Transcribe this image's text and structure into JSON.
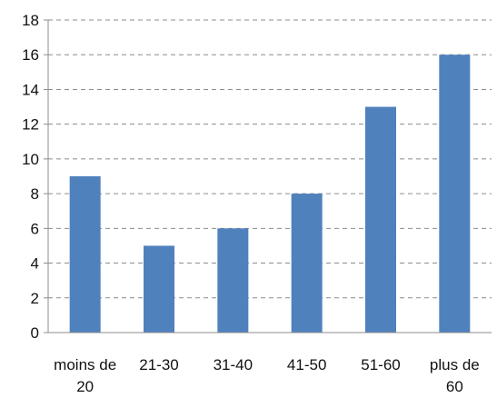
{
  "chart_data": {
    "type": "bar",
    "categories": [
      "moins de 20",
      "21-30",
      "31-40",
      "41-50",
      "51-60",
      "plus de 60"
    ],
    "category_lines": [
      [
        "moins de",
        "20"
      ],
      [
        "21-30"
      ],
      [
        "31-40"
      ],
      [
        "41-50"
      ],
      [
        "51-60"
      ],
      [
        "plus de",
        "60"
      ]
    ],
    "values": [
      9,
      5,
      6,
      8,
      13,
      16
    ],
    "ylim": [
      0,
      18
    ],
    "yticks": [
      0,
      2,
      4,
      6,
      8,
      10,
      12,
      14,
      16,
      18
    ],
    "ytick_labels": [
      "0",
      "2",
      "4",
      "6",
      "8",
      "10",
      "12",
      "14",
      "16",
      "18"
    ],
    "title": "",
    "xlabel": "",
    "ylabel": "",
    "grid": "horizontal-dashed",
    "legend": "none",
    "colors": {
      "bar": "#4f81bd",
      "grid": "#8c8c8c",
      "axis": "#8c8c8c",
      "text": "#111111"
    }
  }
}
